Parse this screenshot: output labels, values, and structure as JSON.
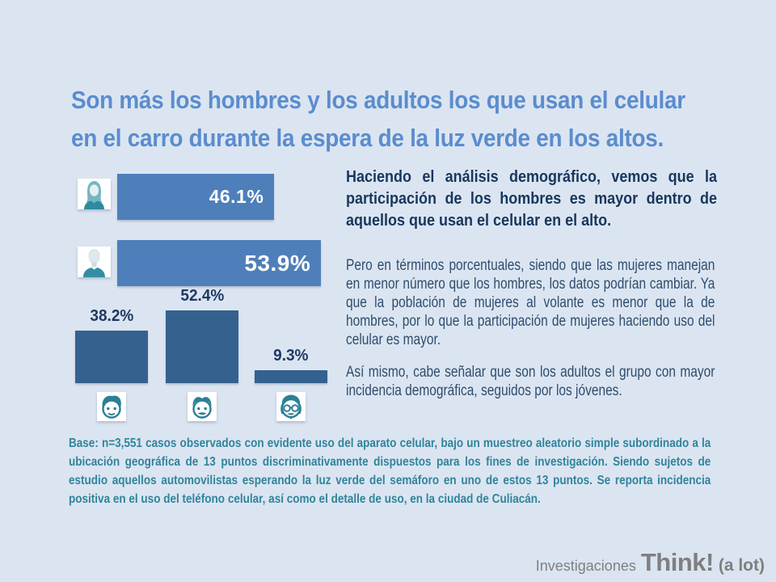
{
  "slide": {
    "title_line1": "Son más los hombres y los adultos los que usan el celular",
    "title_line2": "en el carro durante la espera de la luz verde en los altos.",
    "analysis": {
      "p1": "Haciendo el análisis demográfico, vemos que la participación de los hombres es mayor dentro de aquellos que usan el celular en el alto.",
      "p2": "Pero en términos porcentuales, siendo que las mujeres manejan en menor número que los hombres, los datos podrían cambiar. Ya que la población de mujeres al volante es menor que la de hombres, por lo que la participación de mujeres haciendo uso del celular es mayor.",
      "p3": "Así mismo, cabe señalar que son los adultos el grupo con mayor incidencia demográfica, seguidos por los jóvenes."
    },
    "base_note": "Base: n=3,551 casos observados con evidente uso del aparato celular, bajo un muestreo aleatorio simple subordinado a la ubicación geográfica de 13 puntos discriminativamente dispuestos para los fines de investigación. Siendo sujetos de estudio aquellos automovilistas esperando la luz verde del semáforo en uno de estos 13 puntos. Se reporta incidencia positiva en el uso del teléfono celular, así como el detalle de uso, en la ciudad de Culiacán.",
    "branding": {
      "prefix": "Investigaciones",
      "brand": "Think!",
      "suffix": "(a lot)"
    }
  },
  "chart_data": [
    {
      "type": "bar",
      "orientation": "horizontal",
      "categories": [
        "Mujeres",
        "Hombres"
      ],
      "values": [
        46.1,
        53.9
      ],
      "labels": [
        "46.1%",
        "53.9%"
      ],
      "icons": [
        "female-avatar",
        "male-avatar"
      ],
      "bar_color": "#4e7fba",
      "label_color": "#ffffff",
      "xlim": [
        20,
        54
      ],
      "grid": false,
      "legend": false
    },
    {
      "type": "bar",
      "orientation": "vertical",
      "categories": [
        "Jóvenes",
        "Adultos",
        "Adultos mayores"
      ],
      "values": [
        38.2,
        52.4,
        9.3
      ],
      "labels": [
        "38.2%",
        "52.4%",
        "9.3%"
      ],
      "icons": [
        "young-face",
        "adult-face",
        "elder-face"
      ],
      "bar_color": "#35618f",
      "label_color": "#1f3864",
      "ylim": [
        0,
        55
      ],
      "grid": false,
      "legend": false
    }
  ],
  "colors": {
    "background": "#dbe5f1",
    "title": "#5b8cce",
    "hbar": "#4e7fba",
    "vbar": "#35618f",
    "lead_text": "#17375e",
    "body_text": "#2e4d6e",
    "vlabel_text": "#1f3864",
    "base_note": "#31849b",
    "branding": "#7f7f7f",
    "icon_teal": "#2b8096"
  }
}
